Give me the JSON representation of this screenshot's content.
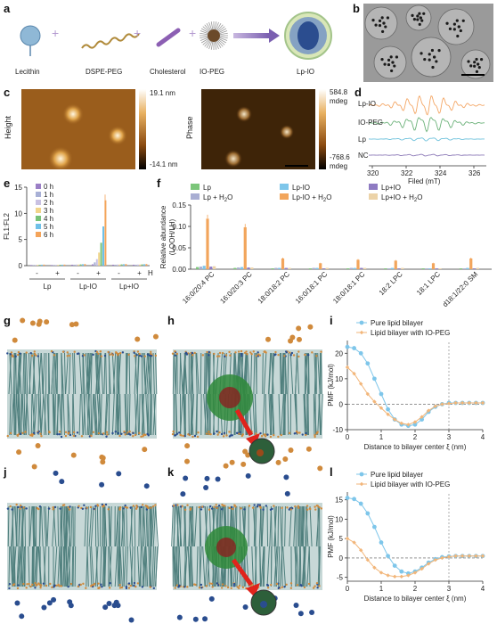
{
  "panel_labels": [
    "a",
    "b",
    "c",
    "d",
    "e",
    "f",
    "g",
    "h",
    "i",
    "j",
    "k",
    "l"
  ],
  "panel_a": {
    "items": [
      "Lecithin",
      "DSPE-PEG",
      "Cholesterol",
      "IO-PEG",
      "Lp-IO"
    ]
  },
  "panel_c": {
    "left_ylabel": "Height",
    "left_max": "19.1 nm",
    "left_min": "-14.1 nm",
    "right_ylabel": "Phase",
    "right_max": "584.8",
    "right_max_unit": "mdeg",
    "right_min": "-768.6",
    "right_min_unit": "mdeg"
  },
  "panel_d": {
    "traces": [
      "Lp-IO",
      "IO-PEG",
      "Lp",
      "NC"
    ],
    "colors": [
      "#f4a766",
      "#6cb27a",
      "#6fc2dc",
      "#8e7bb8"
    ],
    "x_ticks": [
      "320",
      "322",
      "324",
      "326"
    ],
    "xlabel": "Filed (mT)"
  },
  "chart_data": [
    {
      "id": "e",
      "type": "bar",
      "ylabel": "FL1:FL2",
      "legend": [
        "0 h",
        "1 h",
        "2 h",
        "3 h",
        "4 h",
        "5 h",
        "6 h"
      ],
      "legend_colors": [
        "#9b7fc6",
        "#a8b0d6",
        "#c9c1e2",
        "#f2d58a",
        "#78c277",
        "#6fc0e8",
        "#f4a45a"
      ],
      "groups": [
        "Lp",
        "Lp-IO",
        "Lp+IO"
      ],
      "h2o2_row": [
        "-",
        "+",
        "-",
        "+",
        "-",
        "+"
      ],
      "h2o2_label": "H2O2",
      "y_ticks": [
        0,
        5,
        10,
        15
      ],
      "ylim": [
        0,
        15
      ],
      "values_6h": [
        0.2,
        0.2,
        0.3,
        12.5,
        0.3,
        0.3
      ]
    },
    {
      "id": "f",
      "type": "bar",
      "ylabel": "Relative abundance",
      "ylabel2": "(LOOH/LH)",
      "categories": [
        "16:0/20:4 PC",
        "16:0/20:3 PC",
        "18:0/18:2 PC",
        "16:0/18:1 PC",
        "18:0/18:1 PC",
        "18:2 LPC",
        "18:1 LPC",
        "d18:1/22:0 SM"
      ],
      "series": [
        {
          "name": "Lp",
          "color": "#7cc67a",
          "values": [
            0.005,
            0.003,
            0.002,
            0.002,
            0.002,
            0.002,
            0.002,
            0.002
          ]
        },
        {
          "name": "Lp + H2O2",
          "color": "#a9aed3",
          "values": [
            0.006,
            0.004,
            0.003,
            0.003,
            0.003,
            0.002,
            0.002,
            0.002
          ]
        },
        {
          "name": "Lp-IO",
          "color": "#7ec6ea",
          "values": [
            0.008,
            0.005,
            0.003,
            0.003,
            0.003,
            0.003,
            0.002,
            0.003
          ]
        },
        {
          "name": "Lp-IO + H2O2",
          "color": "#f2a55c",
          "values": [
            0.118,
            0.098,
            0.025,
            0.014,
            0.022,
            0.02,
            0.014,
            0.025
          ]
        },
        {
          "name": "Lp+IO",
          "color": "#8e7bc2",
          "values": [
            0.006,
            0.004,
            0.003,
            0.002,
            0.003,
            0.002,
            0.002,
            0.002
          ]
        },
        {
          "name": "Lp+IO + H2O2",
          "color": "#ecd3a8",
          "values": [
            0.007,
            0.004,
            0.003,
            0.003,
            0.003,
            0.003,
            0.002,
            0.003
          ]
        }
      ],
      "legend_row1": [
        "Lp",
        "Lp-IO",
        "Lp+IO"
      ],
      "legend_row2": [
        "Lp + H",
        "Lp-IO + H",
        "Lp+IO + H"
      ],
      "legend_row2_tail": "O",
      "y_ticks": [
        "0.00",
        "0.05",
        "0.10",
        "0.15"
      ],
      "ylim": [
        0,
        0.15
      ]
    },
    {
      "id": "i",
      "type": "line",
      "ylabel": "PMF (kJ/mol)",
      "xlabel": "Distance to bilayer center ξ (nm)",
      "x_ticks": [
        "0",
        "1",
        "2",
        "3",
        "4"
      ],
      "y_ticks": [
        "-10",
        "0",
        "10",
        "20"
      ],
      "xlim": [
        0,
        4
      ],
      "ylim": [
        -10,
        25
      ],
      "series": [
        {
          "name": "Pure lipid bilayer",
          "color": "#7ec6ea",
          "x": [
            0,
            0.2,
            0.4,
            0.6,
            0.8,
            1.0,
            1.2,
            1.4,
            1.6,
            1.8,
            2.0,
            2.2,
            2.4,
            2.6,
            2.8,
            3.0,
            3.2,
            3.4,
            3.6,
            3.8,
            4.0
          ],
          "y": [
            22.5,
            22,
            20,
            16,
            10,
            4,
            -2,
            -6,
            -8,
            -8.5,
            -8,
            -6,
            -3,
            -1,
            0,
            0.5,
            0.5,
            0.5,
            0.5,
            0.5,
            0.5
          ]
        },
        {
          "name": "Lipid bilayer with IO-PEG",
          "color": "#f2b67a",
          "x": [
            0,
            0.2,
            0.4,
            0.6,
            0.8,
            1.0,
            1.2,
            1.4,
            1.6,
            1.8,
            2.0,
            2.2,
            2.4,
            2.6,
            2.8,
            3.0,
            3.2,
            3.4,
            3.6,
            3.8,
            4.0
          ],
          "y": [
            14.5,
            12,
            8,
            4,
            1,
            -1.5,
            -4,
            -6,
            -7.5,
            -8,
            -7,
            -5,
            -2.5,
            -0.8,
            0,
            0.3,
            0.5,
            0.5,
            0.5,
            0.5,
            0.5
          ]
        }
      ]
    },
    {
      "id": "l",
      "type": "line",
      "ylabel": "PMF (kJ/mol)",
      "xlabel": "Distance to bilayer center ξ (nm)",
      "x_ticks": [
        "0",
        "1",
        "2",
        "3",
        "4"
      ],
      "y_ticks": [
        "-5",
        "0",
        "5",
        "10",
        "15"
      ],
      "xlim": [
        0,
        4
      ],
      "ylim": [
        -6,
        17
      ],
      "series": [
        {
          "name": "Pure lipid bilayer",
          "color": "#7ec6ea",
          "x": [
            0,
            0.2,
            0.4,
            0.6,
            0.8,
            1.0,
            1.2,
            1.4,
            1.6,
            1.8,
            2.0,
            2.2,
            2.4,
            2.6,
            2.8,
            3.0,
            3.2,
            3.4,
            3.6,
            3.8,
            4.0
          ],
          "y": [
            15.5,
            15.2,
            14,
            11.5,
            8,
            4,
            0.5,
            -2,
            -3.5,
            -4,
            -3.5,
            -2.5,
            -1.2,
            -0.3,
            0.2,
            0.4,
            0.5,
            0.5,
            0.5,
            0.5,
            0.5
          ]
        },
        {
          "name": "Lipid bilayer with IO-PEG",
          "color": "#f2b67a",
          "x": [
            0,
            0.2,
            0.4,
            0.6,
            0.8,
            1.0,
            1.2,
            1.4,
            1.6,
            1.8,
            2.0,
            2.2,
            2.4,
            2.6,
            2.8,
            3.0,
            3.2,
            3.4,
            3.6,
            3.8,
            4.0
          ],
          "y": [
            5,
            4,
            2,
            -0.5,
            -2.5,
            -3.8,
            -4.5,
            -4.8,
            -4.8,
            -4.5,
            -3.8,
            -2.8,
            -1.5,
            -0.5,
            0,
            0.3,
            0.5,
            0.5,
            0.5,
            0.5,
            0.5
          ]
        }
      ]
    }
  ]
}
